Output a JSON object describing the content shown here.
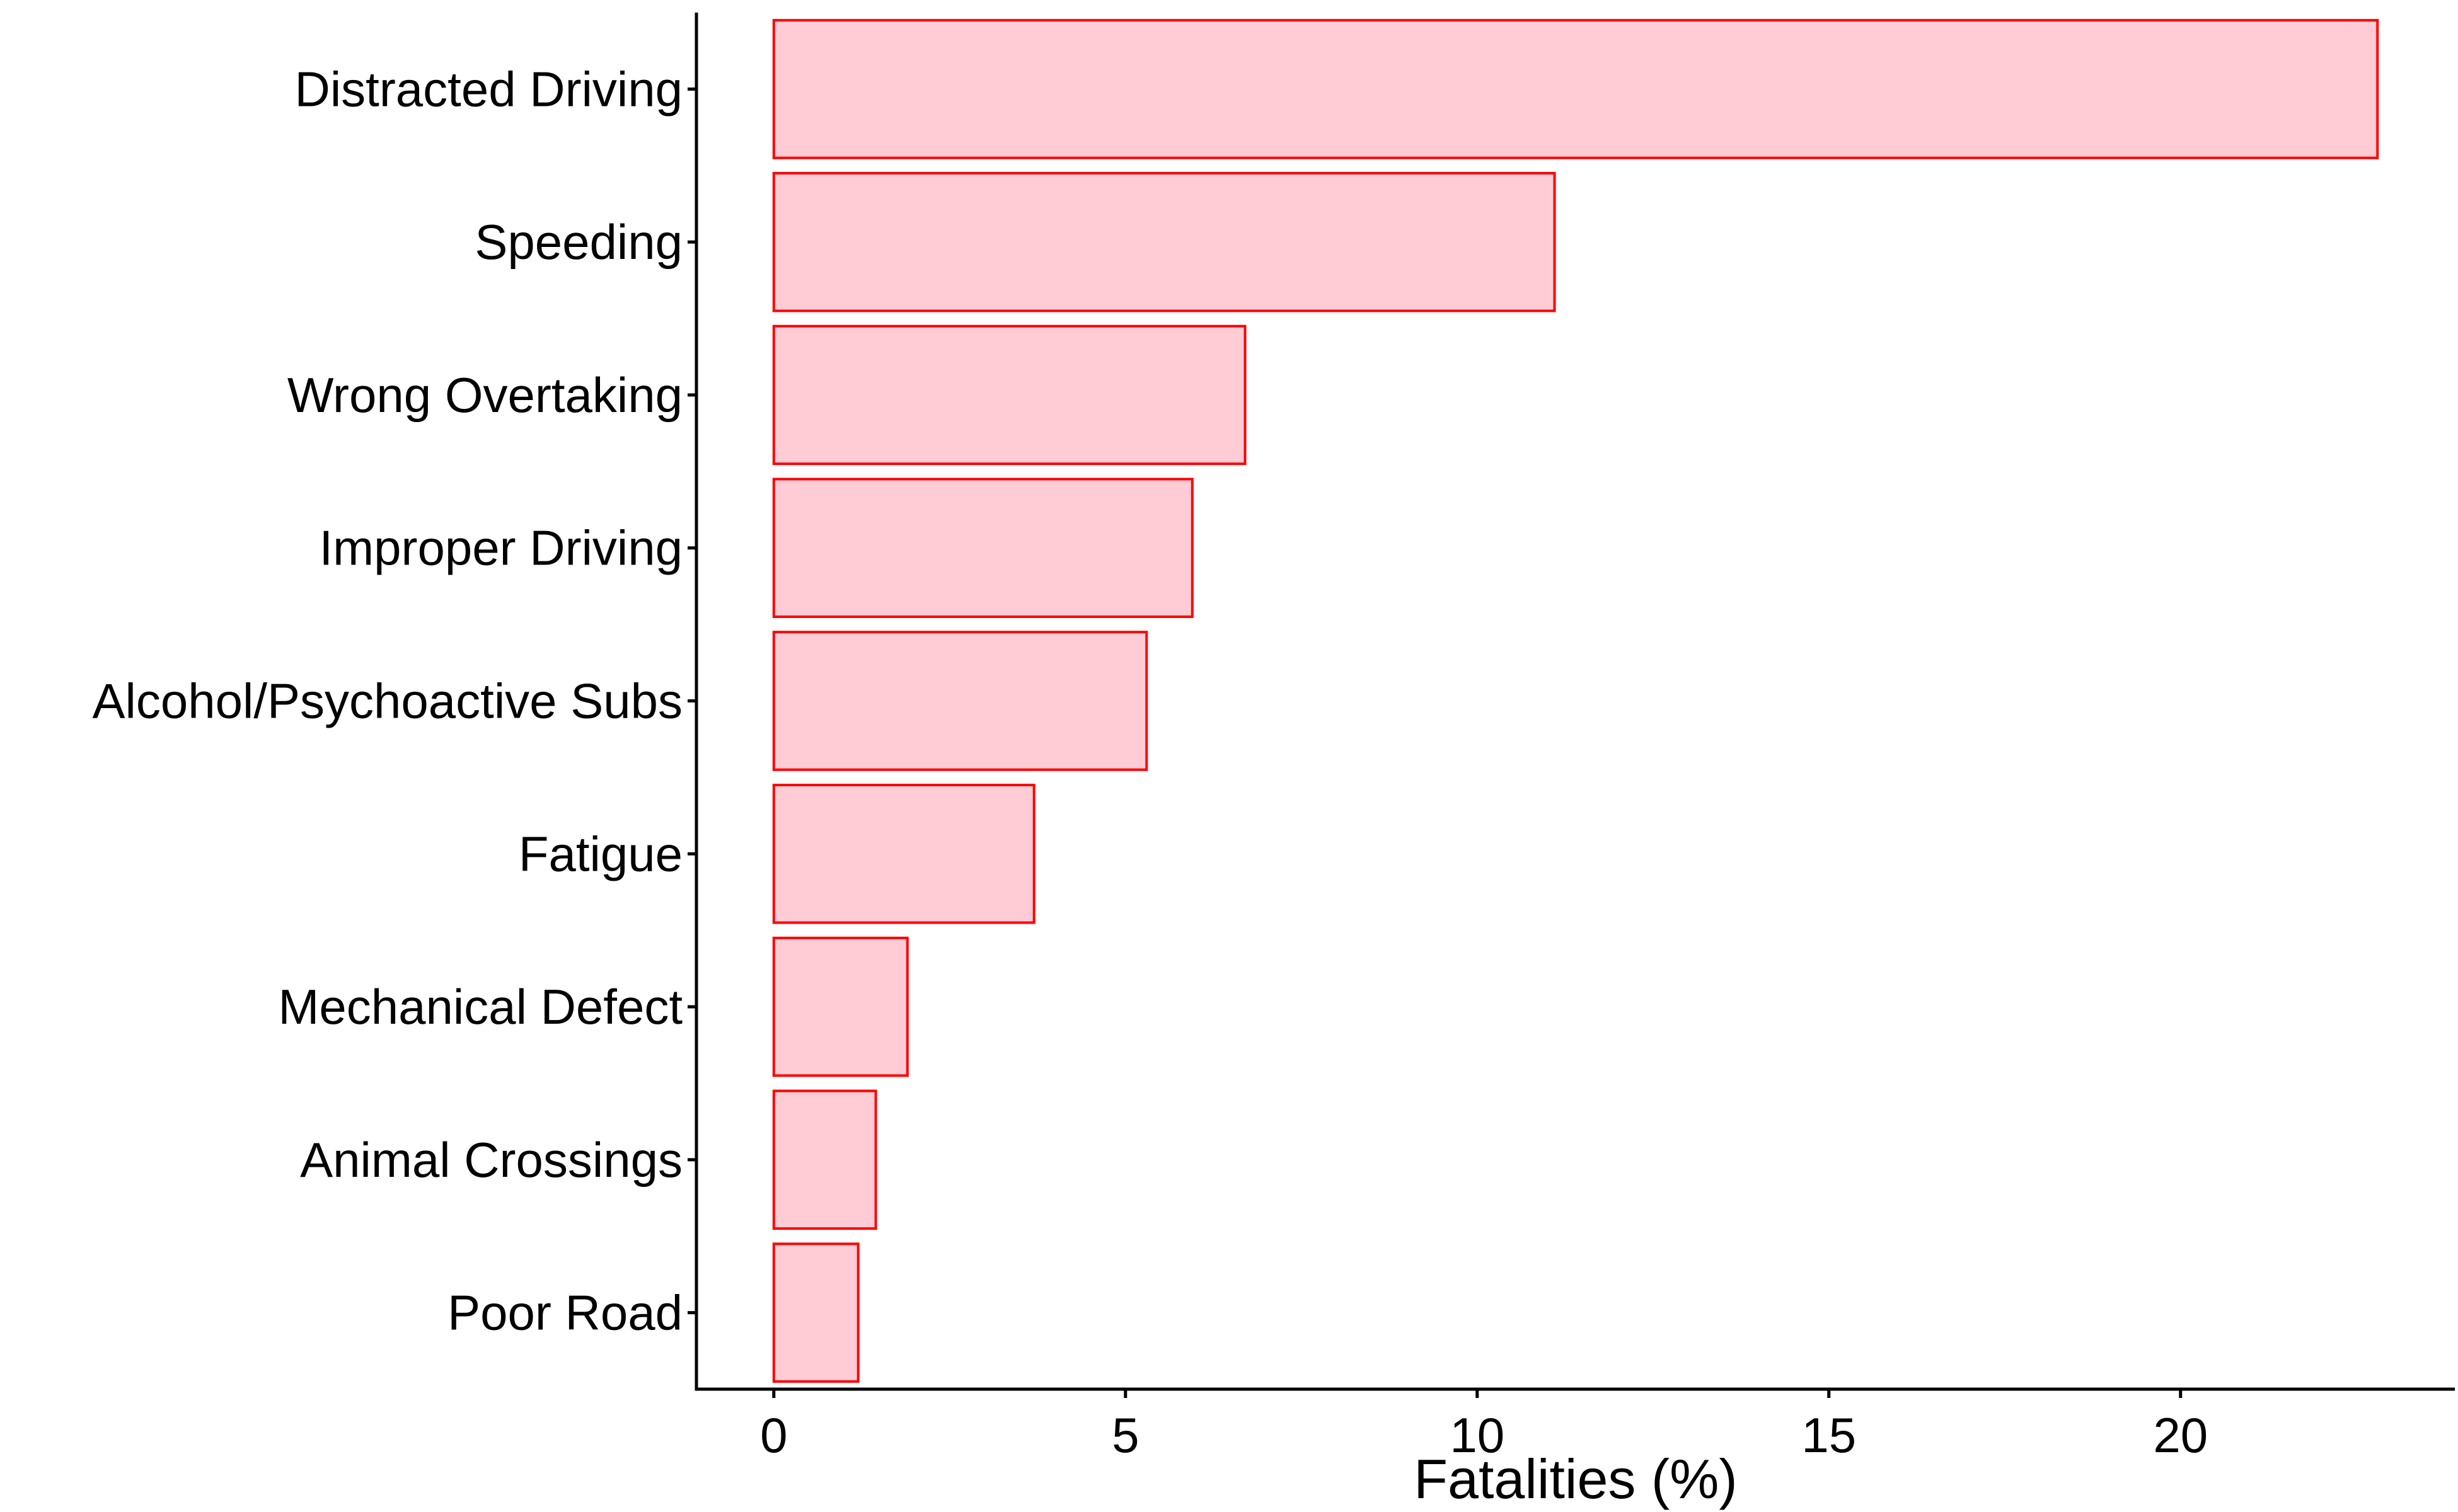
{
  "chart_data": {
    "type": "bar",
    "orientation": "horizontal",
    "title": "",
    "xlabel": "Fatalities (%)",
    "ylabel": "",
    "categories": [
      "Distracted Driving",
      "Speeding",
      "Wrong Overtaking",
      "Improper Driving",
      "Alcohol/Psychoactive Subs",
      "Fatigue",
      "Mechanical Defect",
      "Animal Crossings",
      "Poor Road"
    ],
    "values": [
      22.8,
      11.1,
      6.7,
      5.95,
      5.3,
      3.7,
      1.9,
      1.45,
      1.2
    ],
    "xlim": [
      -1.1,
      23.9
    ],
    "xticks": [
      0,
      5,
      10,
      15,
      20
    ],
    "grid": false,
    "legend": "none",
    "colors": {
      "bar_fill": "#ffccd5",
      "bar_stroke": "#ff0000",
      "axis": "#000000",
      "text": "#000000"
    }
  }
}
